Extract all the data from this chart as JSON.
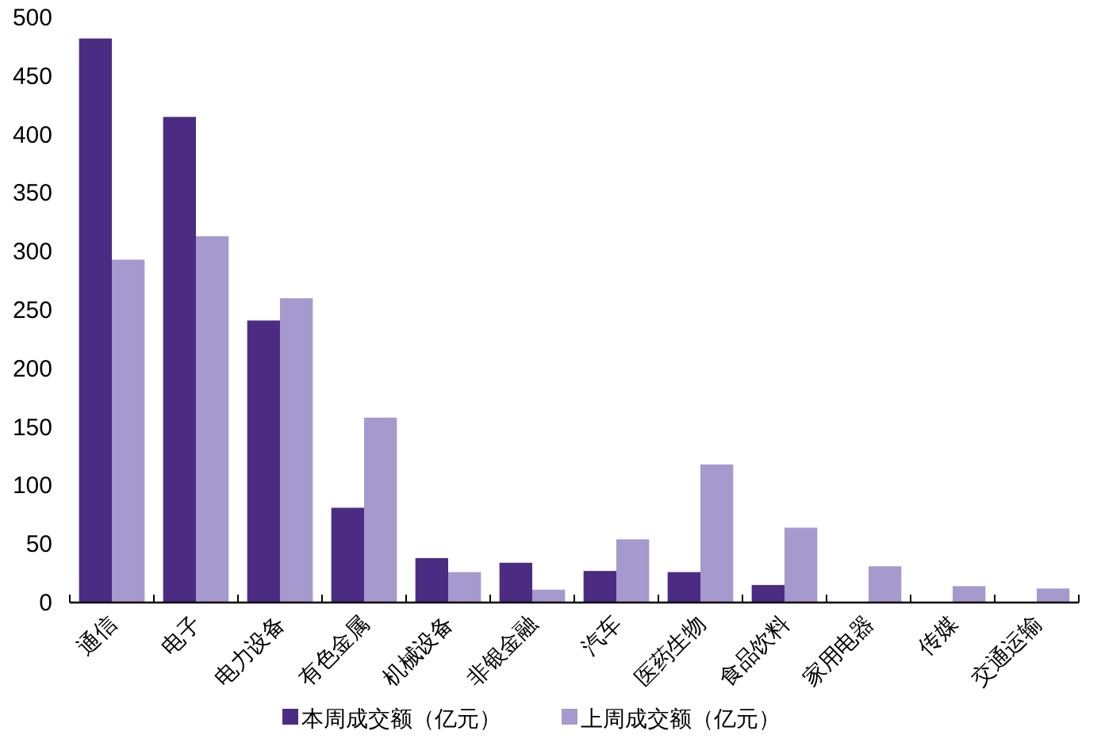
{
  "chart_data": {
    "type": "bar",
    "categories": [
      "通信",
      "电子",
      "电力设备",
      "有色金属",
      "机械设备",
      "非银金融",
      "汽车",
      "医药生物",
      "食品饮料",
      "家用电器",
      "传媒",
      "交通运输"
    ],
    "series": [
      {
        "name": "本周成交额（亿元）",
        "color": "#4b2c82",
        "values": [
          482,
          415,
          241,
          81,
          38,
          34,
          27,
          26,
          15,
          null,
          null,
          null
        ]
      },
      {
        "name": "上周成交额（亿元）",
        "color": "#a699cd",
        "values": [
          293,
          313,
          260,
          158,
          26,
          11,
          54,
          118,
          64,
          31,
          14,
          12
        ]
      }
    ],
    "ylim": [
      0,
      500
    ],
    "yticks": [
      0,
      50,
      100,
      150,
      200,
      250,
      300,
      350,
      400,
      450,
      500
    ],
    "grid": false,
    "legend": "bottom"
  }
}
